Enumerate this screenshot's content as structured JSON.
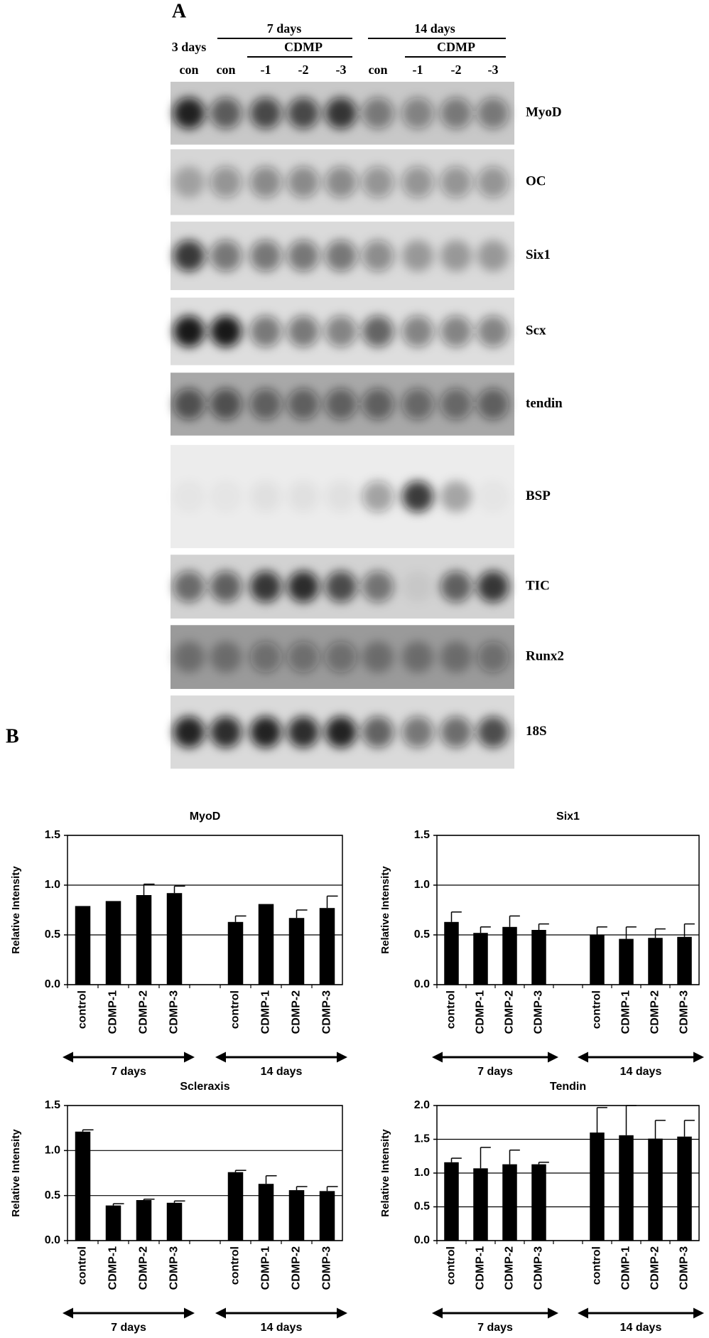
{
  "blot": {
    "panel_label": "A",
    "time_headers": [
      "7 days",
      "14 days"
    ],
    "top_lane_header": "3 days",
    "treatment_headers": [
      "CDMP",
      "CDMP"
    ],
    "lanes": [
      "con",
      "con",
      "-1",
      "-2",
      "-3",
      "con",
      "-1",
      "-2",
      "-3"
    ],
    "genes": [
      "MyoD",
      "OC",
      "Six1",
      "Scx",
      "tendin",
      "BSP",
      "TIC",
      "Runx2",
      "18S"
    ]
  },
  "panel_b_label": "B",
  "chart_data": [
    {
      "type": "bar",
      "title": "MyoD",
      "ylabel": "Relative Intensity",
      "color": "#000000",
      "categories": [
        "control",
        "CDMP-1",
        "CDMP-2",
        "CDMP-3",
        null,
        "control",
        "CDMP-1",
        "CDMP-2",
        "CDMP-3"
      ],
      "values": [
        0.79,
        0.84,
        0.9,
        0.92,
        null,
        0.63,
        0.81,
        0.67,
        0.77
      ],
      "errors": [
        null,
        null,
        0.11,
        0.07,
        null,
        0.06,
        null,
        0.08,
        0.12
      ],
      "group_labels": [
        "7 days",
        "14 days"
      ],
      "ylim": [
        0,
        1.5
      ],
      "yticks": [
        {
          "value": 0,
          "label": "0.0"
        },
        0.5,
        {
          "value": 1,
          "label": "1.0"
        },
        1.5
      ],
      "grid": true
    },
    {
      "type": "bar",
      "title": "Six1",
      "ylabel": "Relative Intensity",
      "color": "#000000",
      "categories": [
        "control",
        "CDMP-1",
        "CDMP-2",
        "CDMP-3",
        null,
        "control",
        "CDMP-1",
        "CDMP-2",
        "CDMP-3"
      ],
      "values": [
        0.63,
        0.52,
        0.58,
        0.55,
        null,
        0.5,
        0.46,
        0.47,
        0.48
      ],
      "errors": [
        0.1,
        0.06,
        0.11,
        0.06,
        null,
        0.08,
        0.12,
        0.09,
        0.13
      ],
      "group_labels": [
        "7 days",
        "14 days"
      ],
      "ylim": [
        0,
        1.5
      ],
      "yticks": [
        {
          "value": 0,
          "label": "0.0"
        },
        0.5,
        {
          "value": 1,
          "label": "1.0"
        },
        1.5
      ],
      "grid": true
    },
    {
      "type": "bar",
      "title": "Scleraxis",
      "ylabel": "Relative Intensity",
      "color": "#000000",
      "categories": [
        "control",
        "CDMP-1",
        "CDMP-2",
        "CDMP-3",
        null,
        "control",
        "CDMP-1",
        "CDMP-2",
        "CDMP-3"
      ],
      "values": [
        1.21,
        0.39,
        0.45,
        0.42,
        null,
        0.76,
        0.63,
        0.56,
        0.55
      ],
      "errors": [
        0.02,
        0.02,
        0.01,
        0.02,
        null,
        0.02,
        0.09,
        0.04,
        0.05
      ],
      "group_labels": [
        "7 days",
        "14 days"
      ],
      "ylim": [
        0,
        1.5
      ],
      "yticks": [
        {
          "value": 0,
          "label": "0.0"
        },
        0.5,
        {
          "value": 1,
          "label": "1.0"
        },
        1.5
      ],
      "grid": true
    },
    {
      "type": "bar",
      "title": "Tendin",
      "ylabel": "Relative Intensity",
      "color": "#000000",
      "categories": [
        "control",
        "CDMP-1",
        "CDMP-2",
        "CDMP-3",
        null,
        "control",
        "CDMP-1",
        "CDMP-2",
        "CDMP-3"
      ],
      "values": [
        1.16,
        1.07,
        1.13,
        1.13,
        null,
        1.6,
        1.56,
        1.51,
        1.54
      ],
      "errors": [
        0.06,
        0.31,
        0.21,
        0.03,
        null,
        0.37,
        0.44,
        0.27,
        0.24
      ],
      "group_labels": [
        "7 days",
        "14 days"
      ],
      "ylim": [
        0,
        2
      ],
      "yticks": [
        {
          "value": 0,
          "label": "0.0"
        },
        0.5,
        {
          "value": 1,
          "label": "1.0"
        },
        1.5,
        {
          "value": 2,
          "label": "2.0"
        }
      ],
      "grid": true
    }
  ]
}
